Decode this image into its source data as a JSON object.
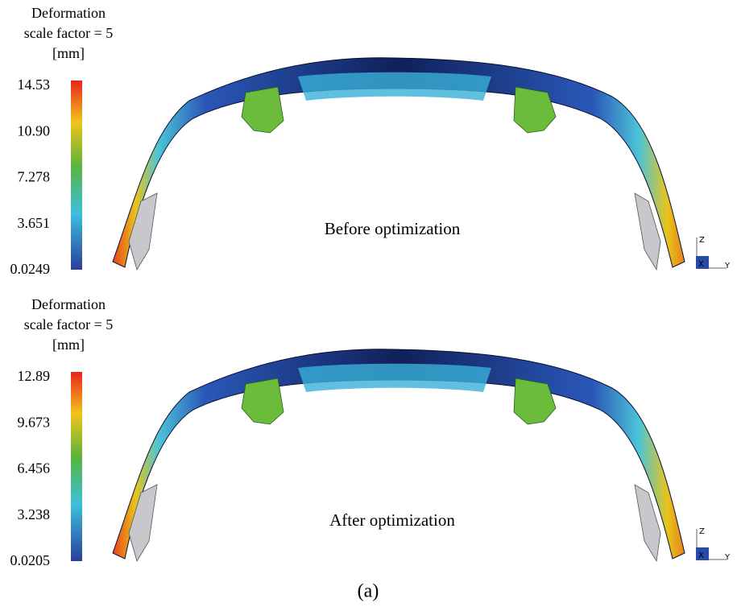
{
  "panels": [
    {
      "legend_title": [
        "Deformation",
        "scale factor = 5",
        "[mm]"
      ],
      "colorbar_labels": [
        "14.53",
        "10.90",
        "7.278",
        "3.651",
        "0.0249"
      ],
      "label": "Before optimization",
      "axes": [
        "Z",
        "X",
        "Y"
      ]
    },
    {
      "legend_title": [
        "Deformation",
        "scale factor = 5",
        "[mm]"
      ],
      "colorbar_labels": [
        "12.89",
        "9.673",
        "6.456",
        "3.238",
        "0.0205"
      ],
      "label": "After optimization",
      "axes": [
        "Z",
        "X",
        "Y"
      ]
    }
  ],
  "caption": "(a)"
}
